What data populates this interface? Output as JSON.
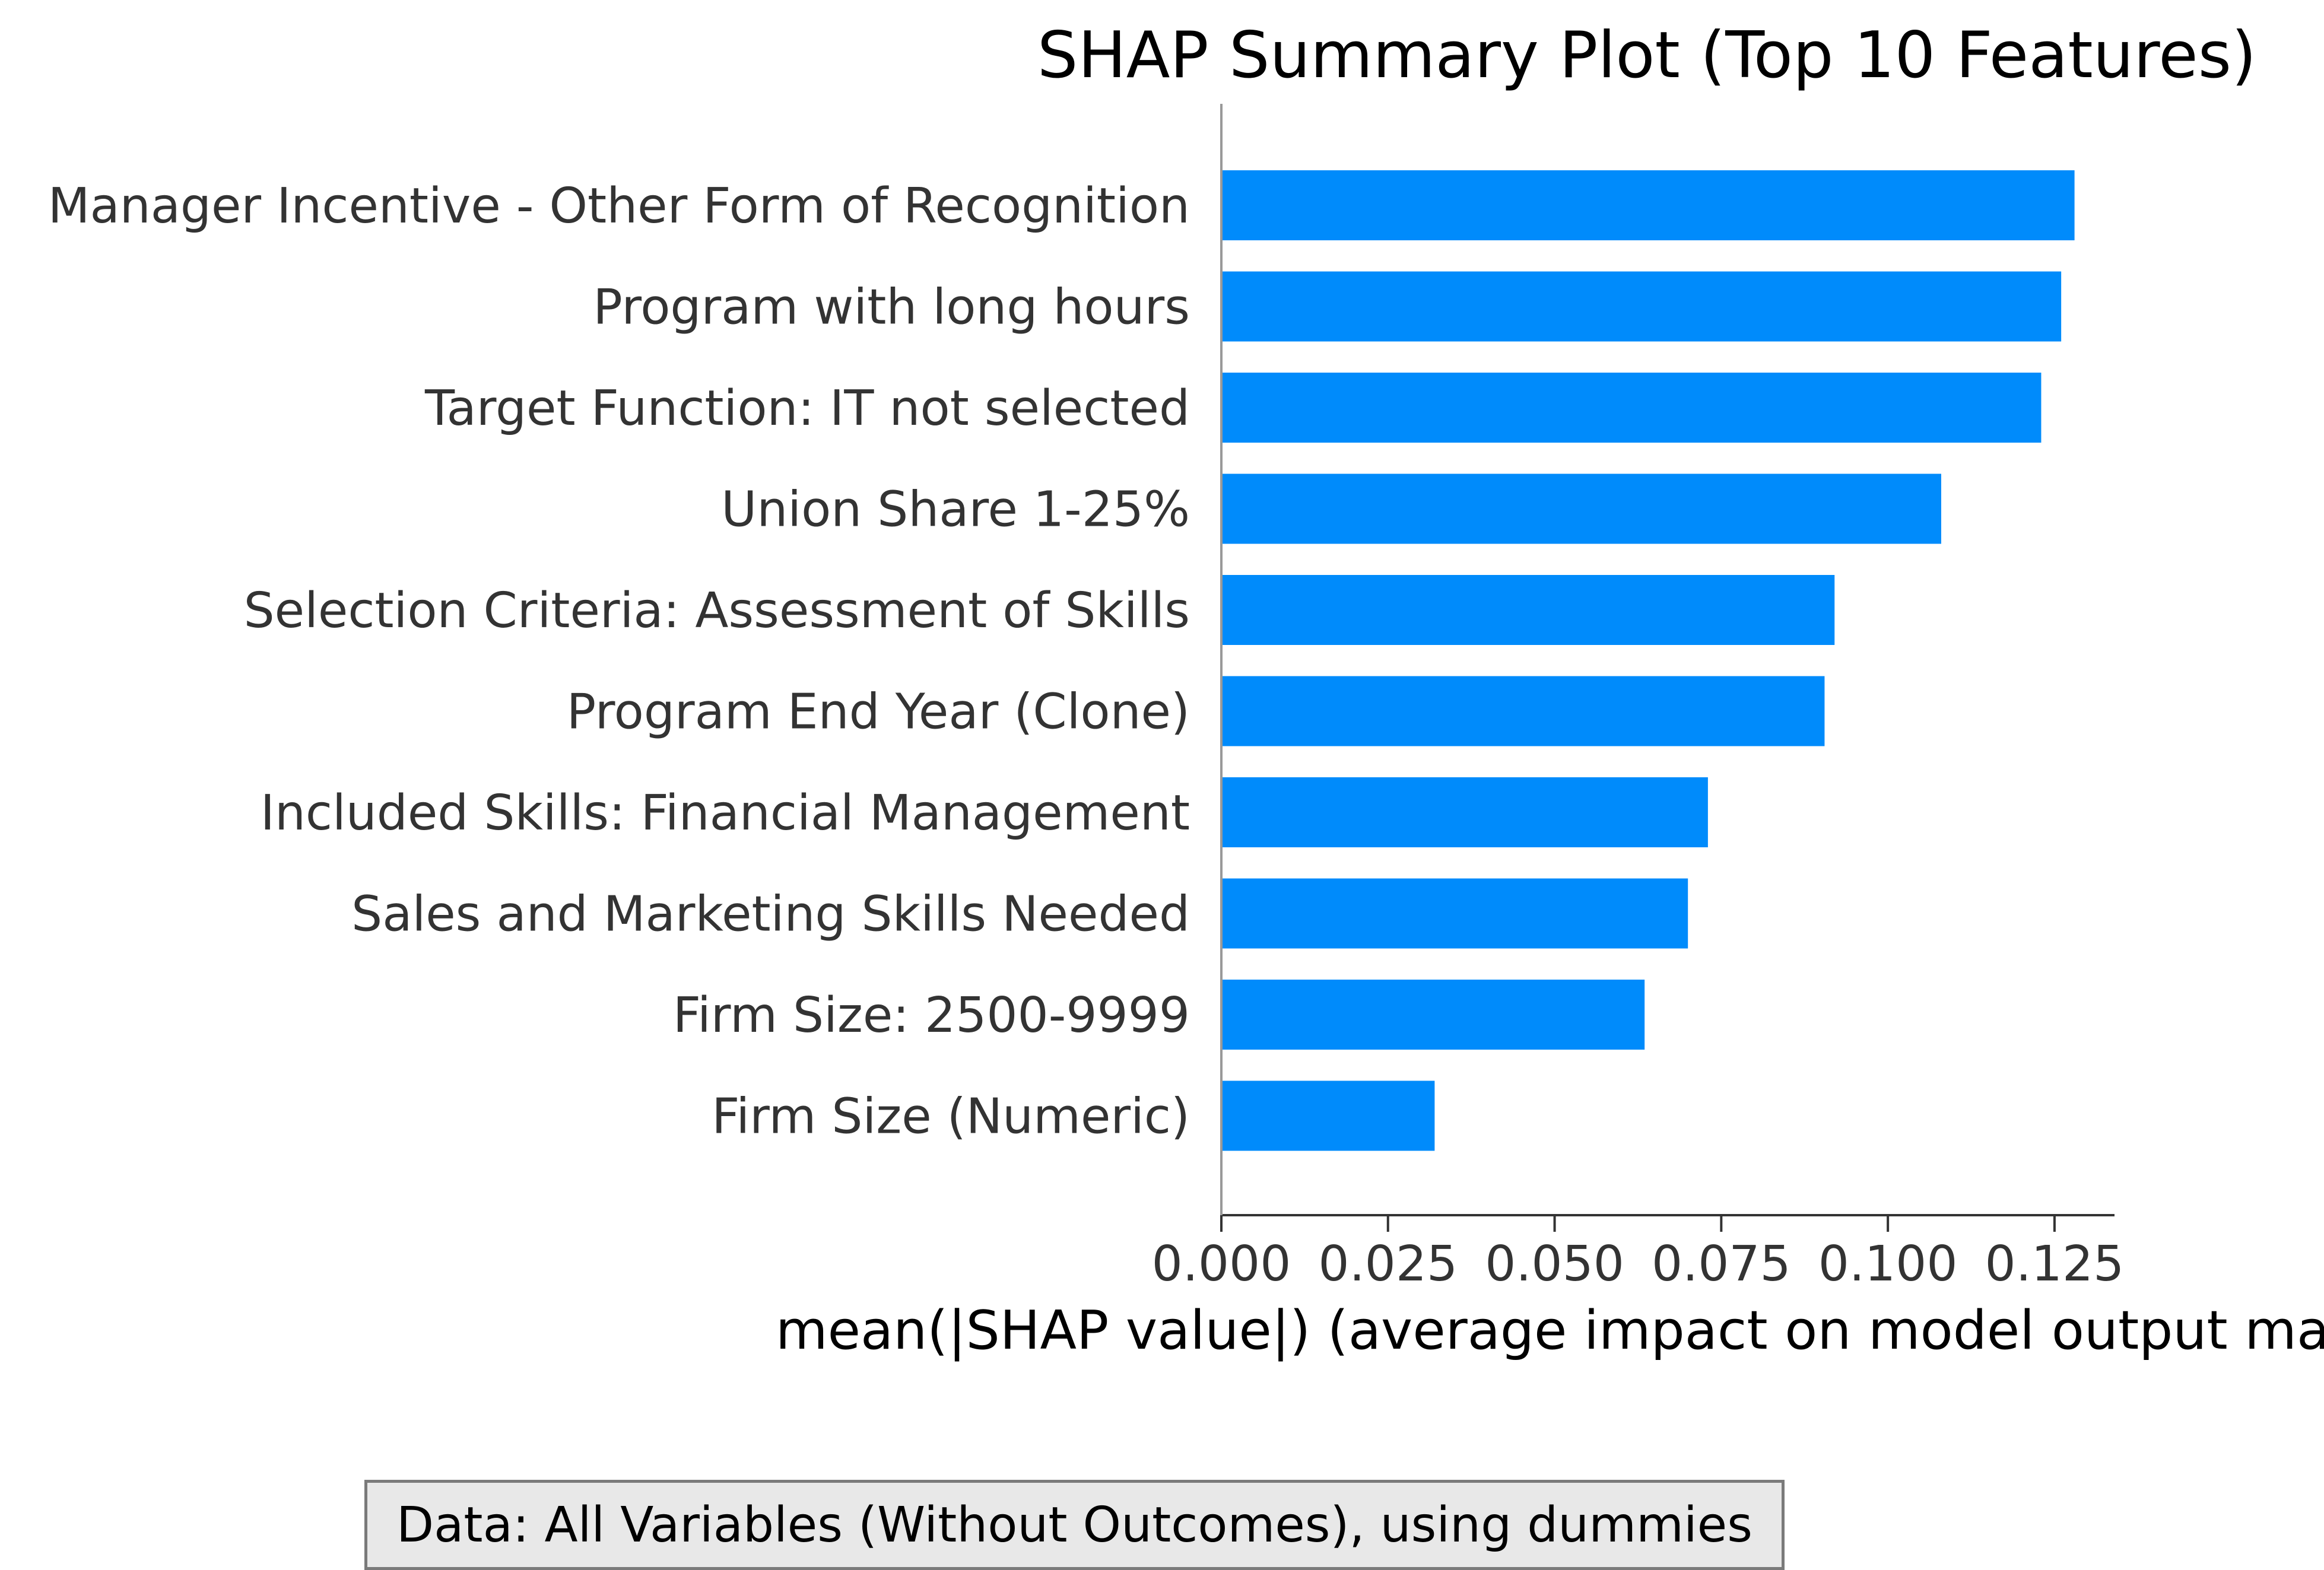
{
  "chart_data": {
    "type": "bar",
    "orientation": "horizontal",
    "title": "SHAP Summary Plot (Top 10 Features)",
    "xlabel": "mean(|SHAP value|) (average impact on model output ma",
    "ylabel": "",
    "categories": [
      "Manager Incentive - Other Form of Recognition",
      "Program with long hours",
      "Target Function: IT not selected",
      "Union Share 1-25%",
      "Selection Criteria: Assessment of Skills",
      "Program End Year (Clone)",
      "Included Skills: Financial Management",
      "Sales and Marketing Skills Needed",
      "Firm Size: 2500-9999",
      "Firm Size (Numeric)"
    ],
    "values": [
      0.128,
      0.126,
      0.123,
      0.108,
      0.092,
      0.0905,
      0.073,
      0.07,
      0.0635,
      0.032
    ],
    "xlim": [
      0,
      0.134
    ],
    "xticks": [
      0.0,
      0.025,
      0.05,
      0.075,
      0.1,
      0.125
    ],
    "xtick_labels": [
      "0.000",
      "0.025",
      "0.050",
      "0.075",
      "0.100",
      "0.125"
    ],
    "bar_color": "#008bfb",
    "grid": false,
    "legend": "none"
  },
  "annotation": {
    "text": "Data: All Variables (Without Outcomes), using dummies",
    "background": "#e8e8e8",
    "border_color": "#7a7a7a"
  }
}
